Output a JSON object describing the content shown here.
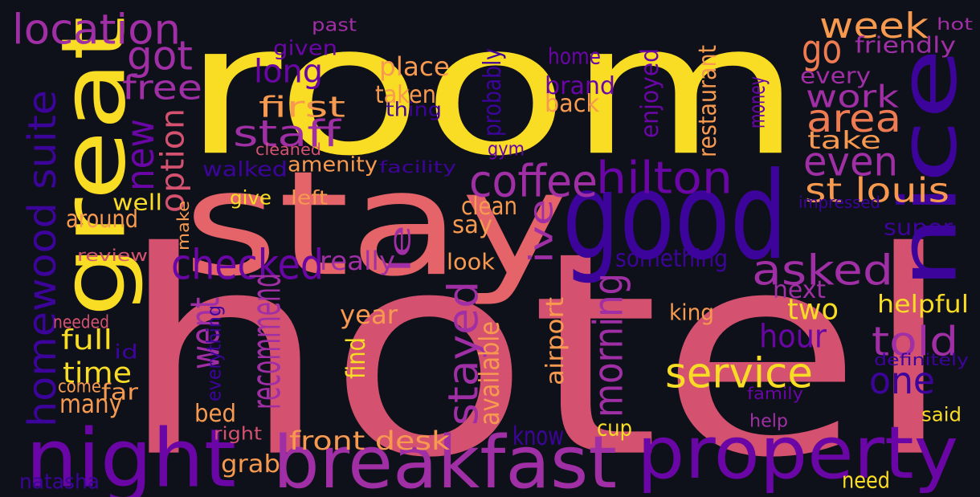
{
  "palette": {
    "background": "#0f111a",
    "yellow": "#f9dc24",
    "light_orange": "#f79a50",
    "orange": "#ee7b51",
    "salmon": "#e4646a",
    "pink": "#d45270",
    "magenta": "#a02fa6",
    "purple": "#6a06a6",
    "indigo": "#3d049c"
  },
  "words": [
    {
      "text": "room",
      "color": "#f9dc24"
    },
    {
      "text": "hotel",
      "color": "#d45270"
    },
    {
      "text": "stay",
      "color": "#e4646a"
    },
    {
      "text": "good",
      "color": "#3d049c"
    },
    {
      "text": "great",
      "color": "#f9dc24"
    },
    {
      "text": "nice",
      "color": "#3d049c"
    },
    {
      "text": "night",
      "color": "#6a06a6"
    },
    {
      "text": "breakfast",
      "color": "#a02fa6"
    },
    {
      "text": "property",
      "color": "#6a06a6"
    },
    {
      "text": "location",
      "color": "#a02fa6"
    },
    {
      "text": "got",
      "color": "#a02fa6"
    },
    {
      "text": "free",
      "color": "#a02fa6"
    },
    {
      "text": "long",
      "color": "#6a06a6"
    },
    {
      "text": "given",
      "color": "#6a06a6"
    },
    {
      "text": "past",
      "color": "#a02fa6"
    },
    {
      "text": "first",
      "color": "#f79a50"
    },
    {
      "text": "staff",
      "color": "#a02fa6"
    },
    {
      "text": "coffee",
      "color": "#a02fa6"
    },
    {
      "text": "hilton",
      "color": "#6a06a6"
    },
    {
      "text": "week",
      "color": "#f79a50"
    },
    {
      "text": "go",
      "color": "#ee7b51"
    },
    {
      "text": "friendly",
      "color": "#a02fa6"
    },
    {
      "text": "hot",
      "color": "#a02fa6"
    },
    {
      "text": "every",
      "color": "#a02fa6"
    },
    {
      "text": "work",
      "color": "#a02fa6"
    },
    {
      "text": "area",
      "color": "#ee7b51"
    },
    {
      "text": "take",
      "color": "#f79a50"
    },
    {
      "text": "even",
      "color": "#a02fa6"
    },
    {
      "text": "st louis",
      "color": "#f79a50"
    },
    {
      "text": "homewood suite",
      "color": "#3d049c"
    },
    {
      "text": "new",
      "color": "#6a06a6"
    },
    {
      "text": "option",
      "color": "#d45270"
    },
    {
      "text": "amenity",
      "color": "#f79a50"
    },
    {
      "text": "facility",
      "color": "#3d049c"
    },
    {
      "text": "walked",
      "color": "#3d049c"
    },
    {
      "text": "cleaned",
      "color": "#d45270"
    },
    {
      "text": "gym",
      "color": "#6a06a6"
    },
    {
      "text": "place",
      "color": "#f79a50"
    },
    {
      "text": "taken",
      "color": "#f79a50"
    },
    {
      "text": "thing",
      "color": "#3d049c"
    },
    {
      "text": "home",
      "color": "#6a06a6"
    },
    {
      "text": "brand",
      "color": "#6a06a6"
    },
    {
      "text": "back",
      "color": "#f79a50"
    },
    {
      "text": "probably",
      "color": "#3d049c"
    },
    {
      "text": "enjoyed",
      "color": "#6a06a6"
    },
    {
      "text": "restaurant",
      "color": "#f79a50"
    },
    {
      "text": "money",
      "color": "#6a06a6"
    },
    {
      "text": "checked",
      "color": "#6a06a6"
    },
    {
      "text": "asked",
      "color": "#a02fa6"
    },
    {
      "text": "well",
      "color": "#f9dc24"
    },
    {
      "text": "give",
      "color": "#f9dc24"
    },
    {
      "text": "left",
      "color": "#f79a50"
    },
    {
      "text": "clean",
      "color": "#f79a50"
    },
    {
      "text": "around",
      "color": "#f79a50"
    },
    {
      "text": "say",
      "color": "#f79a50"
    },
    {
      "text": "le",
      "color": "#a02fa6"
    },
    {
      "text": "ive",
      "color": "#a02fa6"
    },
    {
      "text": "really",
      "color": "#a02fa6"
    },
    {
      "text": "look",
      "color": "#f79a50"
    },
    {
      "text": "something",
      "color": "#3d049c"
    },
    {
      "text": "impressed",
      "color": "#3d049c"
    },
    {
      "text": "super",
      "color": "#3d049c"
    },
    {
      "text": "make",
      "color": "#f79a50"
    },
    {
      "text": "review",
      "color": "#d45270"
    },
    {
      "text": "recommend",
      "color": "#a02fa6"
    },
    {
      "text": "went",
      "color": "#a02fa6"
    },
    {
      "text": "stayed",
      "color": "#a02fa6"
    },
    {
      "text": "morning",
      "color": "#a02fa6"
    },
    {
      "text": "service",
      "color": "#f9dc24"
    },
    {
      "text": "next",
      "color": "#a02fa6"
    },
    {
      "text": "two",
      "color": "#f9dc24"
    },
    {
      "text": "helpful",
      "color": "#f9dc24"
    },
    {
      "text": "hour",
      "color": "#6a06a6"
    },
    {
      "text": "told",
      "color": "#a02fa6"
    },
    {
      "text": "one",
      "color": "#3d049c"
    },
    {
      "text": "definitely",
      "color": "#3d049c"
    },
    {
      "text": "king",
      "color": "#f79a50"
    },
    {
      "text": "year",
      "color": "#f79a50"
    },
    {
      "text": "find",
      "color": "#f9dc24"
    },
    {
      "text": "available",
      "color": "#f79a50"
    },
    {
      "text": "airport",
      "color": "#f79a50"
    },
    {
      "text": "family",
      "color": "#6a06a6"
    },
    {
      "text": "help",
      "color": "#a02fa6"
    },
    {
      "text": "said",
      "color": "#f9dc24"
    },
    {
      "text": "full",
      "color": "#f9dc24"
    },
    {
      "text": "needed",
      "color": "#d45270"
    },
    {
      "text": "id",
      "color": "#3d049c"
    },
    {
      "text": "time",
      "color": "#f9dc24"
    },
    {
      "text": "come",
      "color": "#f79a50"
    },
    {
      "text": "far",
      "color": "#f79a50"
    },
    {
      "text": "many",
      "color": "#f79a50"
    },
    {
      "text": "everything",
      "color": "#3d049c"
    },
    {
      "text": "bed",
      "color": "#f79a50"
    },
    {
      "text": "right",
      "color": "#d45270"
    },
    {
      "text": "front desk",
      "color": "#f79a50"
    },
    {
      "text": "grab",
      "color": "#f79a50"
    },
    {
      "text": "cup",
      "color": "#f9dc24"
    },
    {
      "text": "know",
      "color": "#3d049c"
    },
    {
      "text": "natasha",
      "color": "#3d049c"
    },
    {
      "text": "need",
      "color": "#f9dc24"
    }
  ]
}
